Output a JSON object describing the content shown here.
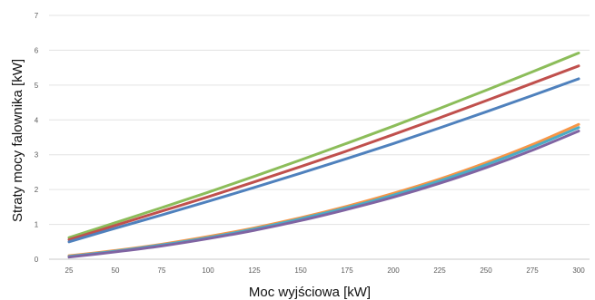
{
  "chart_data": {
    "type": "line",
    "xlabel": "Moc wyjściowa [kW]",
    "ylabel": "Straty mocy falownika [kW]",
    "xlim": [
      25,
      300
    ],
    "ylim": [
      0,
      7
    ],
    "x_ticks": [
      25,
      50,
      75,
      100,
      125,
      150,
      175,
      200,
      225,
      250,
      275,
      300
    ],
    "y_ticks": [
      0,
      1,
      2,
      3,
      4,
      5,
      6,
      7
    ],
    "grid": "horizontal",
    "legend": "none",
    "x": [
      25,
      50,
      75,
      100,
      125,
      150,
      175,
      200,
      225,
      250,
      275,
      300
    ],
    "series": [
      {
        "color": "#8cbd5a",
        "values": [
          0.62,
          1.05,
          1.48,
          1.92,
          2.38,
          2.85,
          3.33,
          3.82,
          4.33,
          4.85,
          5.38,
          5.92
        ]
      },
      {
        "color": "#c0504d",
        "values": [
          0.56,
          0.97,
          1.38,
          1.79,
          2.22,
          2.66,
          3.11,
          3.58,
          4.06,
          4.55,
          5.05,
          5.55
        ]
      },
      {
        "color": "#4f81bd",
        "values": [
          0.5,
          0.89,
          1.27,
          1.66,
          2.06,
          2.47,
          2.89,
          3.32,
          3.77,
          4.23,
          4.7,
          5.18
        ]
      },
      {
        "color": "#f79646",
        "values": [
          0.1,
          0.25,
          0.43,
          0.65,
          0.9,
          1.19,
          1.52,
          1.89,
          2.3,
          2.77,
          3.29,
          3.87
        ]
      },
      {
        "color": "#4bacc6",
        "values": [
          0.08,
          0.23,
          0.41,
          0.62,
          0.87,
          1.16,
          1.48,
          1.84,
          2.25,
          2.71,
          3.22,
          3.78
        ]
      },
      {
        "color": "#8064a2",
        "values": [
          0.06,
          0.21,
          0.38,
          0.59,
          0.83,
          1.11,
          1.43,
          1.78,
          2.18,
          2.63,
          3.13,
          3.68
        ]
      }
    ]
  }
}
